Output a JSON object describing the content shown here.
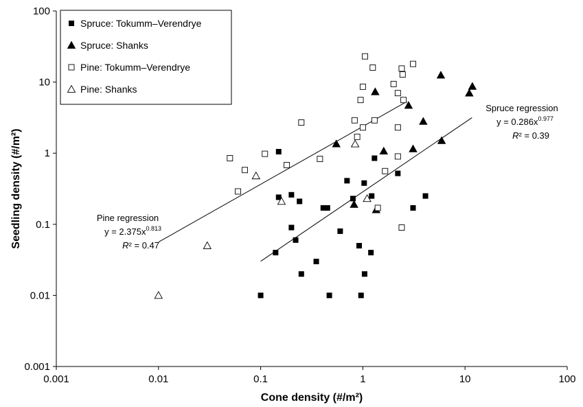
{
  "chart_data": {
    "type": "scatter",
    "xlabel": "Cone density (#/m²)",
    "ylabel": "Seedling density (#/m²)",
    "xscale": "log",
    "yscale": "log",
    "xlim": [
      0.001,
      100
    ],
    "ylim": [
      0.001,
      100
    ],
    "xticks": [
      "0.001",
      "0.01",
      "0.1",
      "1",
      "10",
      "100"
    ],
    "yticks": [
      "0.001",
      "0.01",
      "0.1",
      "1",
      "10",
      "100"
    ],
    "grid": false,
    "legend_position": "top-left",
    "series": [
      {
        "name": "Spruce: Tokumm–Verendrye",
        "marker": "square-filled",
        "points": [
          [
            0.1,
            0.01
          ],
          [
            0.14,
            0.04
          ],
          [
            0.15,
            0.24
          ],
          [
            0.15,
            1.05
          ],
          [
            0.2,
            0.09
          ],
          [
            0.2,
            0.26
          ],
          [
            0.22,
            0.06
          ],
          [
            0.24,
            0.21
          ],
          [
            0.25,
            0.02
          ],
          [
            0.35,
            0.03
          ],
          [
            0.41,
            0.17
          ],
          [
            0.45,
            0.17
          ],
          [
            0.47,
            0.01
          ],
          [
            0.6,
            0.08
          ],
          [
            0.7,
            0.41
          ],
          [
            0.8,
            0.23
          ],
          [
            0.92,
            0.05
          ],
          [
            0.96,
            0.01
          ],
          [
            1.03,
            0.38
          ],
          [
            1.04,
            0.02
          ],
          [
            1.2,
            0.04
          ],
          [
            1.22,
            0.25
          ],
          [
            1.3,
            0.85
          ],
          [
            2.2,
            0.52
          ],
          [
            3.1,
            0.17
          ],
          [
            4.1,
            0.25
          ]
        ]
      },
      {
        "name": "Spruce: Shanks",
        "marker": "triangle-filled",
        "points": [
          [
            0.55,
            1.35
          ],
          [
            0.82,
            0.19
          ],
          [
            1.32,
            7.3
          ],
          [
            1.35,
            0.16
          ],
          [
            1.6,
            1.07
          ],
          [
            2.8,
            4.7
          ],
          [
            3.1,
            1.15
          ],
          [
            3.9,
            2.8
          ],
          [
            5.8,
            12.5
          ],
          [
            5.9,
            1.5
          ],
          [
            11,
            7
          ],
          [
            11.8,
            8.7
          ]
        ]
      },
      {
        "name": "Pine: Tokumm–Verendrye",
        "marker": "square-open",
        "points": [
          [
            0.05,
            0.85
          ],
          [
            0.06,
            0.29
          ],
          [
            0.07,
            0.58
          ],
          [
            0.11,
            0.98
          ],
          [
            0.18,
            0.68
          ],
          [
            0.25,
            2.7
          ],
          [
            0.38,
            0.83
          ],
          [
            0.83,
            2.9
          ],
          [
            0.88,
            1.7
          ],
          [
            0.95,
            5.6
          ],
          [
            1.0,
            8.6
          ],
          [
            1.0,
            2.3
          ],
          [
            1.05,
            23
          ],
          [
            1.25,
            16
          ],
          [
            1.3,
            2.9
          ],
          [
            1.4,
            0.17
          ],
          [
            1.65,
            0.56
          ],
          [
            2.0,
            9.4
          ],
          [
            2.2,
            7
          ],
          [
            2.2,
            2.3
          ],
          [
            2.2,
            0.9
          ],
          [
            2.4,
            15.5
          ],
          [
            2.45,
            12.8
          ],
          [
            2.5,
            5.6
          ],
          [
            2.4,
            0.09
          ],
          [
            3.1,
            18
          ]
        ]
      },
      {
        "name": "Pine: Shanks",
        "marker": "triangle-open",
        "points": [
          [
            0.01,
            0.01
          ],
          [
            0.03,
            0.05
          ],
          [
            0.09,
            0.48
          ],
          [
            0.16,
            0.21
          ],
          [
            0.84,
            1.35
          ],
          [
            1.1,
            0.23
          ]
        ]
      }
    ],
    "regressions": [
      {
        "title": "Pine regression",
        "equation_prefix": "y = 2.375x",
        "exponent": "0.813",
        "r2_label": "R",
        "r2_value": "² = 0.47",
        "coef": 2.375,
        "power": 0.813,
        "x_range": [
          0.01,
          2.7
        ]
      },
      {
        "title": "Spruce regression",
        "equation_prefix": "y = 0.286x",
        "exponent": "0.977",
        "r2_label": "R",
        "r2_value": "² = 0.39",
        "coef": 0.286,
        "power": 0.977,
        "x_range": [
          0.1,
          11.7
        ]
      }
    ]
  }
}
